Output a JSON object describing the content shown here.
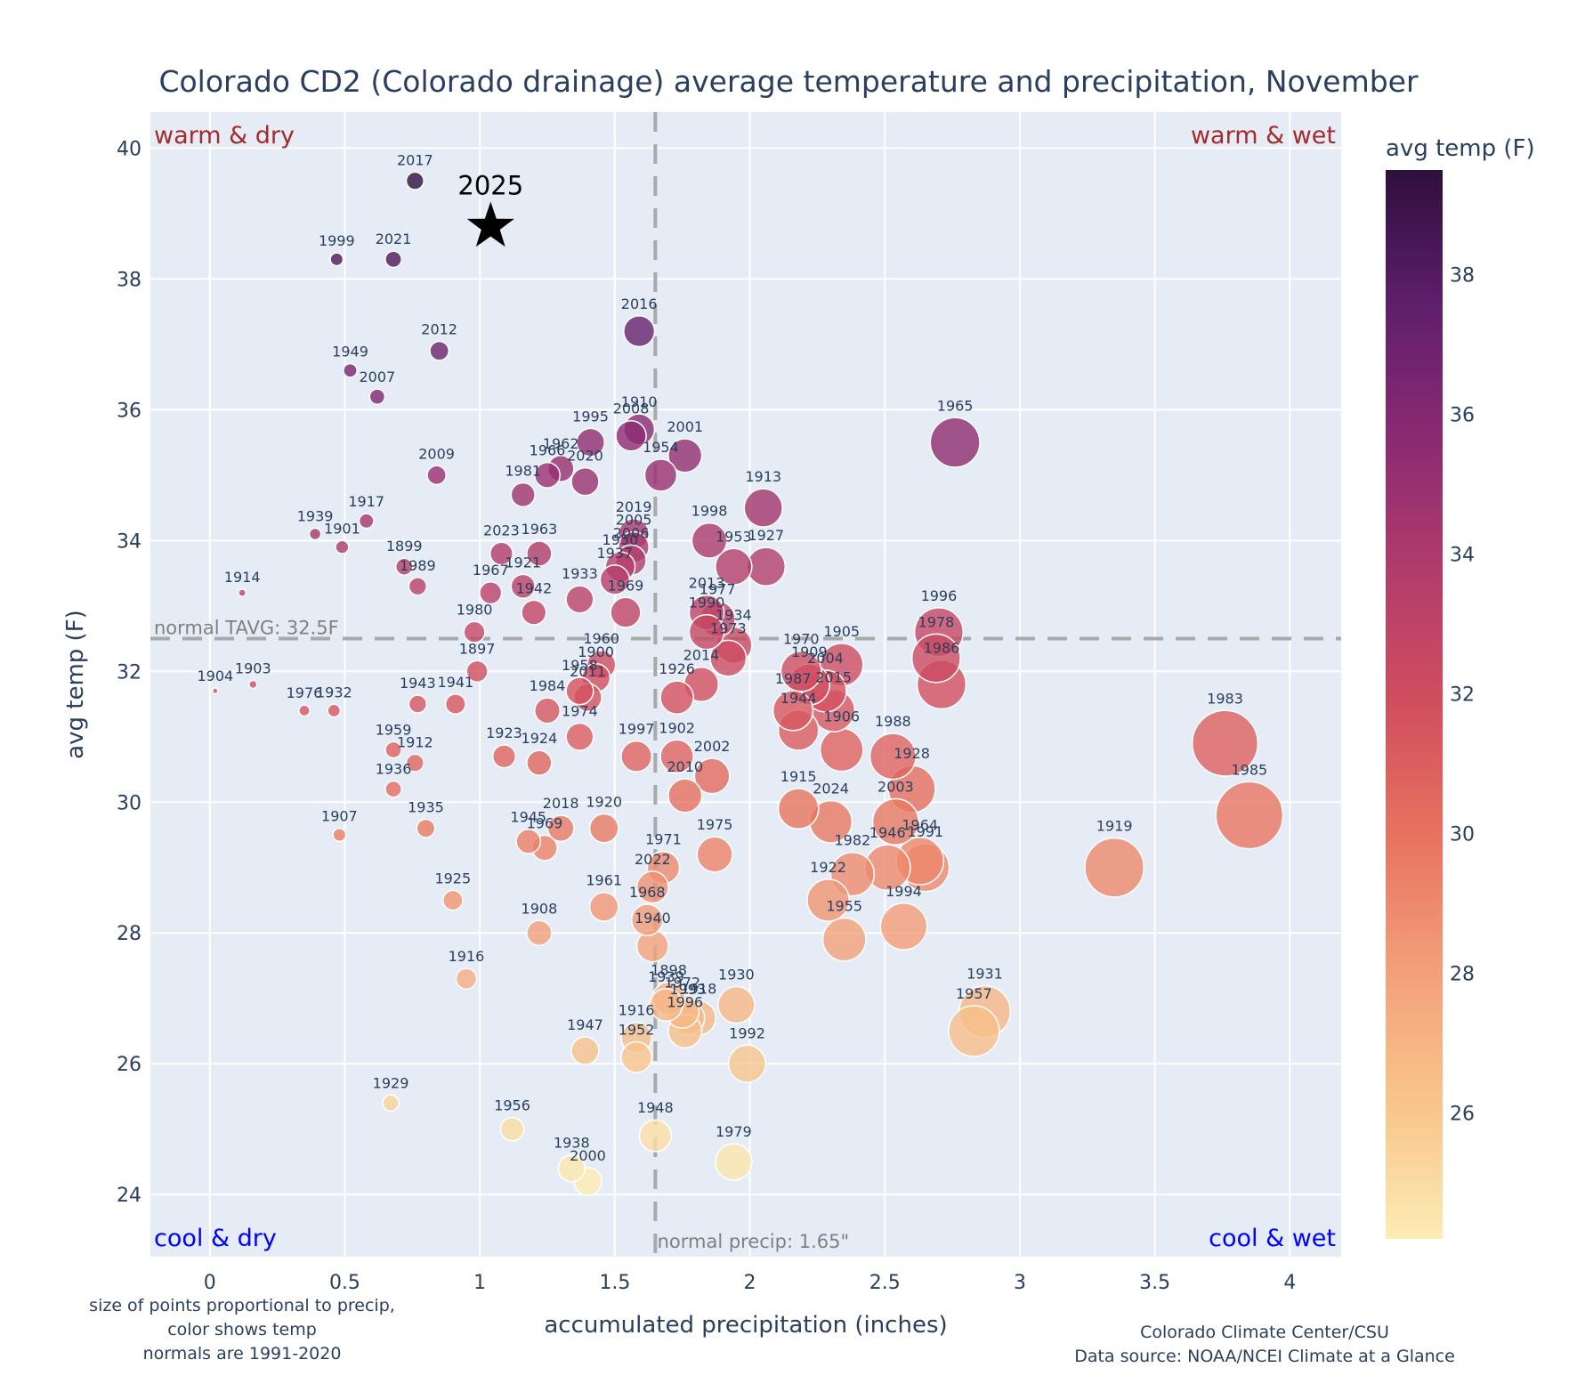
{
  "chart_data": {
    "type": "scatter",
    "title": "Colorado CD2 (Colorado drainage) average temperature and precipitation, November",
    "xlabel": "accumulated precipitation (inches)",
    "ylabel": "avg temp (F)",
    "xlim": [
      -0.22,
      4.19
    ],
    "ylim": [
      23.05,
      40.55
    ],
    "xticks": [
      0,
      0.5,
      1,
      1.5,
      2,
      2.5,
      3,
      3.5,
      4
    ],
    "xtick_labels": [
      "0",
      "0.5",
      "1",
      "1.5",
      "2",
      "2.5",
      "3",
      "3.5",
      "4"
    ],
    "yticks": [
      24,
      26,
      28,
      30,
      32,
      34,
      36,
      38,
      40
    ],
    "ytick_labels": [
      "24",
      "26",
      "28",
      "30",
      "32",
      "34",
      "36",
      "38",
      "40"
    ],
    "grid": true,
    "size_encoding": "precipitation",
    "color_encoding": "avg temp (F)",
    "colorbar": {
      "title": "avg temp (F)",
      "range": [
        24.2,
        39.5
      ],
      "ticks": [
        26,
        28,
        30,
        32,
        34,
        36,
        38
      ],
      "tick_labels": [
        "26",
        "28",
        "30",
        "32",
        "34",
        "36",
        "38"
      ],
      "colorscale": [
        "#fcecb3",
        "#f8c58c",
        "#f3a07a",
        "#e8735f",
        "#d24e5f",
        "#b13c6b",
        "#8a2a72",
        "#5e1f6b",
        "#2e0f3d"
      ],
      "placement": "right"
    },
    "reference_lines": {
      "normal_temp": 32.5,
      "normal_temp_label": "normal TAVG: 32.5F",
      "normal_precip": 1.65,
      "normal_precip_label": "normal precip: 1.65\""
    },
    "quadrant_labels": {
      "top_left": "warm & dry",
      "top_right": "warm & wet",
      "bottom_left": "cool & dry",
      "bottom_right": "cool & wet"
    },
    "highlight": {
      "label": "2025",
      "x": 1.04,
      "y": 38.8,
      "marker": "star"
    },
    "points": [
      {
        "year": "2017",
        "x": 0.76,
        "y": 39.5
      },
      {
        "year": "1999",
        "x": 0.47,
        "y": 38.3
      },
      {
        "year": "2021",
        "x": 0.68,
        "y": 38.3
      },
      {
        "year": "2016",
        "x": 1.59,
        "y": 37.2
      },
      {
        "year": "2012",
        "x": 0.85,
        "y": 36.9
      },
      {
        "year": "1949",
        "x": 0.52,
        "y": 36.6
      },
      {
        "year": "2007",
        "x": 0.62,
        "y": 36.2
      },
      {
        "year": "1965",
        "x": 2.76,
        "y": 35.5
      },
      {
        "year": "1910",
        "x": 1.59,
        "y": 35.7
      },
      {
        "year": "2008",
        "x": 1.56,
        "y": 35.6
      },
      {
        "year": "1995",
        "x": 1.41,
        "y": 35.5
      },
      {
        "year": "2001",
        "x": 1.76,
        "y": 35.3
      },
      {
        "year": "1962",
        "x": 1.3,
        "y": 35.1
      },
      {
        "year": "1966",
        "x": 1.25,
        "y": 35.0
      },
      {
        "year": "1954",
        "x": 1.67,
        "y": 35.0
      },
      {
        "year": "2020",
        "x": 1.39,
        "y": 34.9
      },
      {
        "year": "2009",
        "x": 0.84,
        "y": 35.0
      },
      {
        "year": "1981",
        "x": 1.16,
        "y": 34.7
      },
      {
        "year": "1913",
        "x": 2.05,
        "y": 34.5
      },
      {
        "year": "1917",
        "x": 0.58,
        "y": 34.3
      },
      {
        "year": "1939",
        "x": 0.39,
        "y": 34.1
      },
      {
        "year": "2019",
        "x": 1.57,
        "y": 34.1
      },
      {
        "year": "1998",
        "x": 1.85,
        "y": 34.0
      },
      {
        "year": "1901",
        "x": 0.49,
        "y": 33.9
      },
      {
        "year": "2005",
        "x": 1.57,
        "y": 33.9
      },
      {
        "year": "2023",
        "x": 1.08,
        "y": 33.8
      },
      {
        "year": "1963",
        "x": 1.22,
        "y": 33.8
      },
      {
        "year": "1950",
        "x": 1.52,
        "y": 33.6
      },
      {
        "year": "1953",
        "x": 1.94,
        "y": 33.6
      },
      {
        "year": "1927",
        "x": 2.06,
        "y": 33.6
      },
      {
        "year": "1899",
        "x": 0.72,
        "y": 33.6
      },
      {
        "year": "2006",
        "x": 1.56,
        "y": 33.7
      },
      {
        "year": "1921",
        "x": 1.16,
        "y": 33.3
      },
      {
        "year": "1967",
        "x": 1.04,
        "y": 33.2
      },
      {
        "year": "1933",
        "x": 1.37,
        "y": 33.1
      },
      {
        "year": "1989",
        "x": 0.77,
        "y": 33.3
      },
      {
        "year": "1914",
        "x": 0.12,
        "y": 33.2
      },
      {
        "year": "1937",
        "x": 1.5,
        "y": 33.4
      },
      {
        "year": "1942",
        "x": 1.2,
        "y": 32.9
      },
      {
        "year": "2013",
        "x": 1.84,
        "y": 32.9
      },
      {
        "year": "1977",
        "x": 1.88,
        "y": 32.8
      },
      {
        "year": "1969",
        "x": 1.54,
        "y": 32.9
      },
      {
        "year": "1990",
        "x": 1.84,
        "y": 32.6
      },
      {
        "year": "1934",
        "x": 1.94,
        "y": 32.4
      },
      {
        "year": "1973",
        "x": 1.92,
        "y": 32.2
      },
      {
        "year": "1996",
        "x": 2.7,
        "y": 32.6
      },
      {
        "year": "1978",
        "x": 2.69,
        "y": 32.2
      },
      {
        "year": "1980",
        "x": 0.98,
        "y": 32.6
      },
      {
        "year": "1905",
        "x": 2.34,
        "y": 32.1
      },
      {
        "year": "1897",
        "x": 0.99,
        "y": 32.0
      },
      {
        "year": "1960",
        "x": 1.45,
        "y": 32.1
      },
      {
        "year": "1900",
        "x": 1.43,
        "y": 31.9
      },
      {
        "year": "1986",
        "x": 2.71,
        "y": 31.8
      },
      {
        "year": "1970",
        "x": 2.19,
        "y": 32.0
      },
      {
        "year": "1909",
        "x": 2.22,
        "y": 31.8
      },
      {
        "year": "2004",
        "x": 2.28,
        "y": 31.7
      },
      {
        "year": "2014",
        "x": 1.82,
        "y": 31.8
      },
      {
        "year": "1904",
        "x": 0.02,
        "y": 31.7
      },
      {
        "year": "1903",
        "x": 0.16,
        "y": 31.8
      },
      {
        "year": "1958",
        "x": 1.37,
        "y": 31.7
      },
      {
        "year": "2011",
        "x": 1.4,
        "y": 31.6
      },
      {
        "year": "1926",
        "x": 1.73,
        "y": 31.6
      },
      {
        "year": "1987",
        "x": 2.16,
        "y": 31.4
      },
      {
        "year": "2015",
        "x": 2.31,
        "y": 31.4
      },
      {
        "year": "1943",
        "x": 0.77,
        "y": 31.5
      },
      {
        "year": "1941",
        "x": 0.91,
        "y": 31.5
      },
      {
        "year": "1976",
        "x": 0.35,
        "y": 31.4
      },
      {
        "year": "1932",
        "x": 0.46,
        "y": 31.4
      },
      {
        "year": "1984",
        "x": 1.25,
        "y": 31.4
      },
      {
        "year": "1944",
        "x": 2.18,
        "y": 31.1
      },
      {
        "year": "1974",
        "x": 1.37,
        "y": 31.0
      },
      {
        "year": "1983",
        "x": 3.76,
        "y": 30.9
      },
      {
        "year": "1906",
        "x": 2.34,
        "y": 30.8
      },
      {
        "year": "1959",
        "x": 0.68,
        "y": 30.8
      },
      {
        "year": "1912",
        "x": 0.76,
        "y": 30.6
      },
      {
        "year": "1923",
        "x": 1.09,
        "y": 30.7
      },
      {
        "year": "1924",
        "x": 1.22,
        "y": 30.6
      },
      {
        "year": "1997",
        "x": 1.58,
        "y": 30.7
      },
      {
        "year": "1902",
        "x": 1.73,
        "y": 30.7
      },
      {
        "year": "1988",
        "x": 2.53,
        "y": 30.7
      },
      {
        "year": "2002",
        "x": 1.86,
        "y": 30.4
      },
      {
        "year": "1936",
        "x": 0.68,
        "y": 30.2
      },
      {
        "year": "2010",
        "x": 1.76,
        "y": 30.1
      },
      {
        "year": "1928",
        "x": 2.6,
        "y": 30.2
      },
      {
        "year": "1915",
        "x": 2.18,
        "y": 29.9
      },
      {
        "year": "1985",
        "x": 3.85,
        "y": 29.8
      },
      {
        "year": "2024",
        "x": 2.3,
        "y": 29.7
      },
      {
        "year": "2003",
        "x": 2.54,
        "y": 29.7
      },
      {
        "year": "1935",
        "x": 0.8,
        "y": 29.6
      },
      {
        "year": "1907",
        "x": 0.48,
        "y": 29.5
      },
      {
        "year": "2018",
        "x": 1.3,
        "y": 29.6
      },
      {
        "year": "1920",
        "x": 1.46,
        "y": 29.6
      },
      {
        "year": "1945",
        "x": 1.18,
        "y": 29.4
      },
      {
        "year": "1969b",
        "x": 1.24,
        "y": 29.3
      },
      {
        "year": "1975",
        "x": 1.87,
        "y": 29.2
      },
      {
        "year": "1964",
        "x": 2.63,
        "y": 29.1
      },
      {
        "year": "1946",
        "x": 2.51,
        "y": 29.0
      },
      {
        "year": "1991",
        "x": 2.65,
        "y": 29.0
      },
      {
        "year": "1971",
        "x": 1.68,
        "y": 29.0
      },
      {
        "year": "1919",
        "x": 3.35,
        "y": 29.0
      },
      {
        "year": "1982",
        "x": 2.38,
        "y": 28.9
      },
      {
        "year": "2022",
        "x": 1.64,
        "y": 28.7
      },
      {
        "year": "1922",
        "x": 2.29,
        "y": 28.5
      },
      {
        "year": "1925",
        "x": 0.9,
        "y": 28.5
      },
      {
        "year": "1961",
        "x": 1.46,
        "y": 28.4
      },
      {
        "year": "1968",
        "x": 1.62,
        "y": 28.2
      },
      {
        "year": "1994",
        "x": 2.57,
        "y": 28.1
      },
      {
        "year": "1908",
        "x": 1.22,
        "y": 28.0
      },
      {
        "year": "1955",
        "x": 2.35,
        "y": 27.9
      },
      {
        "year": "1940",
        "x": 1.64,
        "y": 27.8
      },
      {
        "year": "1916",
        "x": 0.95,
        "y": 27.3
      },
      {
        "year": "1898",
        "x": 1.7,
        "y": 27.0
      },
      {
        "year": "1939b",
        "x": 1.69,
        "y": 26.9
      },
      {
        "year": "1972",
        "x": 1.75,
        "y": 26.8
      },
      {
        "year": "1930",
        "x": 1.95,
        "y": 26.9
      },
      {
        "year": "1993",
        "x": 1.77,
        "y": 26.7
      },
      {
        "year": "1918",
        "x": 1.81,
        "y": 26.7
      },
      {
        "year": "1931",
        "x": 2.87,
        "y": 26.8
      },
      {
        "year": "1957",
        "x": 2.83,
        "y": 26.5
      },
      {
        "year": "1996b",
        "x": 1.76,
        "y": 26.5
      },
      {
        "year": "1916b",
        "x": 1.58,
        "y": 26.4
      },
      {
        "year": "1947",
        "x": 1.39,
        "y": 26.2
      },
      {
        "year": "1952",
        "x": 1.58,
        "y": 26.1
      },
      {
        "year": "1992",
        "x": 1.99,
        "y": 26.0
      },
      {
        "year": "1929",
        "x": 0.67,
        "y": 25.4
      },
      {
        "year": "1956",
        "x": 1.12,
        "y": 25.0
      },
      {
        "year": "1948",
        "x": 1.65,
        "y": 24.9
      },
      {
        "year": "1979",
        "x": 1.94,
        "y": 24.5
      },
      {
        "year": "1938",
        "x": 1.34,
        "y": 24.4
      },
      {
        "year": "2000",
        "x": 1.4,
        "y": 24.2
      }
    ]
  },
  "annotations": {
    "note_left": [
      "size of points proportional to precip,",
      "color shows temp",
      "normals are 1991-2020"
    ],
    "note_right": [
      "Colorado Climate Center/CSU",
      "Data source: NOAA/NCEI Climate at a Glance"
    ]
  },
  "colors": {
    "plot_bg": "#e5ecf6",
    "grid": "#ffffff",
    "ref_line": "#a9a9a9",
    "text": "#2a3f5f",
    "warm_label": "#a52a2a",
    "cool_label": "#0000ff"
  }
}
